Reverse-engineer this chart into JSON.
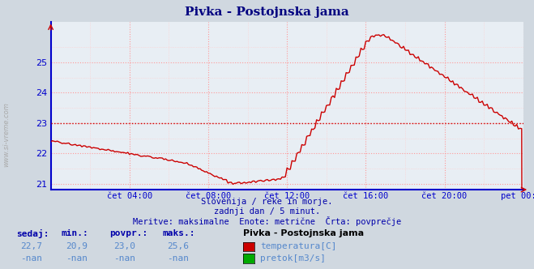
{
  "title": "Pivka - Postojnska jama",
  "bg_color": "#d0d8e0",
  "plot_bg_color": "#e8eef4",
  "title_color": "#000080",
  "axis_color": "#0000cc",
  "grid_color_major": "#ff9999",
  "grid_color_minor": "#ffcccc",
  "line_color": "#cc0000",
  "avg_line_color": "#cc0000",
  "avg_line_value": 23.0,
  "bottom_line_color": "#0000cc",
  "left_line_color": "#0000cc",
  "ylim": [
    20.8,
    26.35
  ],
  "yticks": [
    21,
    22,
    23,
    24,
    25
  ],
  "ylabel_color": "#0000cc",
  "xtick_labels": [
    "čet 04:00",
    "čet 08:00",
    "čet 12:00",
    "čet 16:00",
    "čet 20:00",
    "pet 00:00"
  ],
  "xtick_hours": [
    4,
    8,
    12,
    16,
    20,
    24
  ],
  "subtitle1": "Slovenija / reke in morje.",
  "subtitle2": "zadnji dan / 5 minut.",
  "subtitle3": "Meritve: maksimalne  Enote: metrične  Črta: povprečje",
  "subtitle_color": "#0000aa",
  "table_header_color": "#0000aa",
  "table_value_color": "#5588cc",
  "legend_title": "Pivka - Postojnska jama",
  "legend_title_color": "#000000",
  "col_sedaj": "22,7",
  "col_min": "20,9",
  "col_povpr": "23,0",
  "col_maks": "25,6",
  "col2_sedaj": "-nan",
  "col2_min": "-nan",
  "col2_povpr": "-nan",
  "col2_maks": "-nan",
  "temp_color": "#cc0000",
  "pretok_color": "#00aa00",
  "watermark": "www.si-vreme.com",
  "watermark_color": "#aaaaaa"
}
